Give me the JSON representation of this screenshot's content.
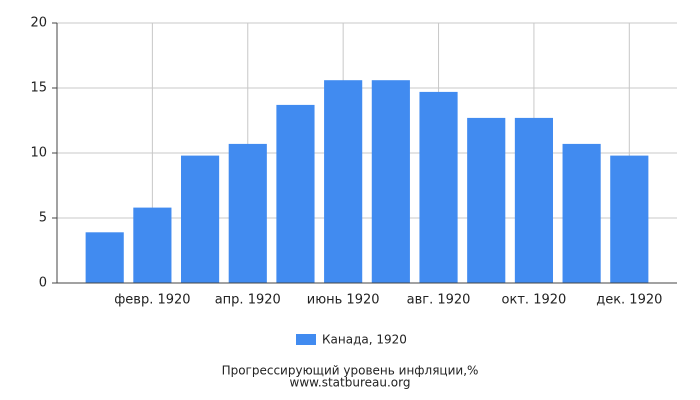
{
  "chart_data": {
    "type": "bar",
    "categories": [
      null,
      "февр. 1920",
      null,
      "апр. 1920",
      null,
      "июнь 1920",
      null,
      "авг. 1920",
      null,
      "окт. 1920",
      null,
      "дек. 1920"
    ],
    "series": [
      {
        "name": "Канада, 1920",
        "color": "#418bf0",
        "values": [
          3.9,
          5.8,
          9.8,
          10.7,
          13.7,
          15.6,
          15.6,
          14.7,
          12.7,
          12.7,
          10.7,
          9.8
        ]
      }
    ],
    "ylim": [
      0,
      20
    ],
    "yticks": [
      0,
      5,
      10,
      15,
      20
    ],
    "grid": true,
    "footer": [
      "Прогрессирующий уровень инфляции,%",
      "www.statbureau.org"
    ]
  }
}
